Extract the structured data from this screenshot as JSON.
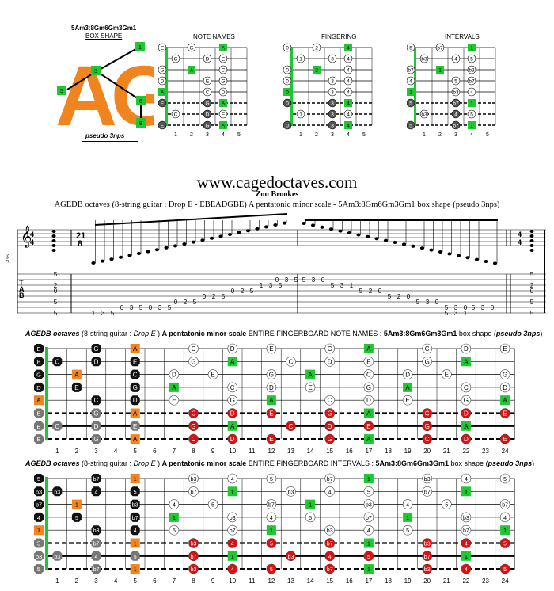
{
  "header": {
    "shape_label": "5Am3:8Gm6Gm3Gm1",
    "box_shape": "BOX SHAPE",
    "logo_text": "AG",
    "pseudo": "pseudo 3nps",
    "note_names_title": "NOTE NAMES",
    "fingering_title": "FINGERING",
    "intervals_title": "INTERVALS",
    "box_fret_numbers": [
      "1",
      "2",
      "3",
      "4",
      "5"
    ]
  },
  "site": "www.cagedoctaves.com",
  "author": "Zon Brookes",
  "subtitle": "AGEDB octaves (8-string guitar : Drop E - EBEADGBE) A pentatonic minor scale - 5Am3:8Gm6Gm3Gm1 box shape (pseudo 3nps)",
  "staff": {
    "tuning_label": "L-GS",
    "time_sig_start": [
      "4",
      "4"
    ],
    "time_sig_mid": [
      "21",
      "8"
    ],
    "time_sig_end": [
      "4",
      "4"
    ],
    "tab_letters": [
      "T",
      "A",
      "B"
    ],
    "tab_numbers": [
      [
        "5",
        "2",
        "0",
        "5",
        "5"
      ],
      [
        "1",
        "3",
        "5"
      ],
      [
        "0",
        "3",
        "5"
      ],
      [
        "0",
        "3",
        "5"
      ],
      [
        "0",
        "2",
        "5"
      ],
      [
        "0",
        "2",
        "5"
      ],
      [
        "0",
        "2",
        "5"
      ],
      [
        "1",
        "3",
        "5"
      ],
      [
        "0",
        "3",
        "5"
      ],
      [
        "5",
        "3",
        "0"
      ],
      [
        "5",
        "3",
        "1"
      ],
      [
        "5",
        "2",
        "0"
      ],
      [
        "5",
        "2",
        "0"
      ],
      [
        "5",
        "3",
        "0"
      ],
      [
        "5",
        "3",
        "0"
      ],
      [
        "5",
        "3",
        "1"
      ],
      [
        "5",
        "3",
        "0"
      ],
      [
        "5",
        "2",
        "0",
        "5",
        "5"
      ]
    ]
  },
  "fb1": {
    "t_italic_bold": "AGEDB octaves",
    "t_normal1": " (8-string guitar : ",
    "t_italic": "Drop E",
    "t_normal2": " ) ",
    "t_bold1": "A pentatonic minor scale",
    "t_normal3": " ENTIRE FINGERBOARD NOTE NAMES : ",
    "t_bold2": "5Am3:8Gm6Gm3Gm1",
    "t_normal4": " box shape (",
    "t_bold_italic": "pseudo 3nps",
    "t_normal5": ")",
    "open": [
      "E",
      "B",
      "G",
      "D",
      "A",
      "E",
      "B",
      "E"
    ],
    "rows": [
      {
        "0": "E",
        "3": "G",
        "5": "A",
        "8": "C",
        "10": "D",
        "12": "E",
        "15": "G",
        "17": "A",
        "20": "C",
        "22": "D",
        "24": "E"
      },
      {
        "1": "C",
        "3": "D",
        "5": "E",
        "8": "G",
        "10": "A",
        "13": "C",
        "15": "D",
        "17": "E",
        "20": "G",
        "22": "A"
      },
      {
        "2": "A",
        "5": "C",
        "7": "D",
        "9": "E",
        "12": "G",
        "14": "A",
        "17": "C",
        "19": "D",
        "21": "E",
        "24": "G"
      },
      {
        "2": "E",
        "5": "G",
        "7": "A",
        "10": "C",
        "12": "D",
        "14": "E",
        "17": "G",
        "19": "A",
        "22": "C",
        "24": "D"
      },
      {
        "3": "C",
        "5": "D",
        "7": "E",
        "10": "G",
        "12": "A",
        "15": "C",
        "17": "D",
        "19": "E",
        "22": "G",
        "24": "A"
      },
      {
        "3": "G",
        "5": "A",
        "8": "C",
        "10": "D",
        "12": "E",
        "15": "G",
        "17": "A",
        "20": "C",
        "22": "D",
        "24": "E"
      },
      {
        "1": "C",
        "3": "D",
        "5": "E",
        "8": "G",
        "10": "A",
        "13": "C",
        "15": "D",
        "17": "E",
        "20": "G",
        "22": "A"
      },
      {
        "3": "G",
        "5": "A",
        "8": "C",
        "10": "D",
        "12": "E",
        "15": "G",
        "17": "A",
        "20": "C",
        "22": "D",
        "24": "E"
      }
    ]
  },
  "fb2": {
    "t_italic_bold": "AGEDB octaves",
    "t_normal1": " (8-string guitar : ",
    "t_italic": "Drop E",
    "t_normal2": " ) ",
    "t_bold1": "A pentatonic minor scale",
    "t_normal3": " ENTIRE FINGERBOARD INTERVALS : ",
    "t_bold2": "5Am3:8Gm6Gm3Gm1",
    "t_normal4": " box shape (",
    "t_bold_italic": "pseudo 3nps",
    "t_normal5": ")",
    "open": [
      "5",
      "b3",
      "b7",
      "4",
      "1",
      "5",
      "b3",
      "5"
    ],
    "rows": [
      {
        "0": "5",
        "3": "b7",
        "5": "1",
        "8": "b3",
        "10": "4",
        "12": "5",
        "15": "b7",
        "17": "1",
        "20": "b3",
        "22": "4",
        "24": "5"
      },
      {
        "1": "b3",
        "3": "4",
        "5": "5",
        "8": "b7",
        "10": "1",
        "13": "b3",
        "15": "4",
        "17": "5",
        "20": "b7",
        "22": "1"
      },
      {
        "2": "1",
        "5": "b3",
        "7": "4",
        "9": "5",
        "12": "b7",
        "14": "1",
        "17": "b3",
        "19": "4",
        "21": "5",
        "24": "b7"
      },
      {
        "2": "5",
        "5": "b7",
        "7": "1",
        "10": "b3",
        "12": "4",
        "14": "5",
        "17": "b7",
        "19": "1",
        "22": "b3",
        "24": "4"
      },
      {
        "3": "b3",
        "5": "4",
        "7": "5",
        "10": "b7",
        "12": "1",
        "15": "b3",
        "17": "4",
        "19": "5",
        "22": "b7",
        "24": "1"
      },
      {
        "3": "b7",
        "5": "1",
        "8": "b3",
        "10": "4",
        "12": "5",
        "15": "b7",
        "17": "1",
        "20": "b3",
        "22": "4",
        "24": "5"
      },
      {
        "1": "b3",
        "3": "4",
        "5": "5",
        "8": "b7",
        "10": "1",
        "13": "b3",
        "15": "4",
        "17": "5",
        "20": "b7",
        "22": "1"
      },
      {
        "3": "b7",
        "5": "1",
        "8": "b3",
        "10": "4",
        "12": "5",
        "15": "b7",
        "17": "1",
        "20": "b3",
        "22": "4",
        "24": "5"
      }
    ]
  },
  "fret_numbers": [
    "1",
    "2",
    "3",
    "4",
    "5",
    "6",
    "7",
    "8",
    "9",
    "10",
    "11",
    "12",
    "13",
    "14",
    "15",
    "16",
    "17",
    "18",
    "19",
    "20",
    "21",
    "22",
    "23",
    "24"
  ],
  "colors": {
    "green": "#1fc832",
    "orange": "#f0841e",
    "red": "#e01010",
    "gray": "#777777",
    "black": "#111111"
  }
}
